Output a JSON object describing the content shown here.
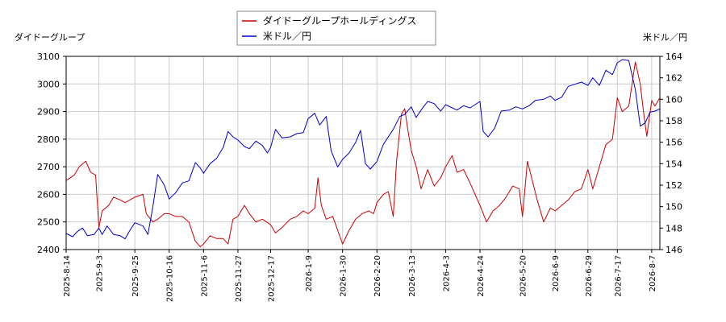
{
  "chart_data": {
    "type": "line",
    "y_left_label": "ダイドーグループ",
    "y_right_label": "米ドル／円",
    "y_left_lim": [
      2400,
      3100
    ],
    "y_left_ticks": [
      2400,
      2500,
      2600,
      2700,
      2800,
      2900,
      3000,
      3100
    ],
    "y_right_lim": [
      146,
      164
    ],
    "y_right_ticks": [
      146,
      148,
      150,
      152,
      154,
      156,
      158,
      160,
      162,
      164
    ],
    "x_lim": [
      "2025-08-14",
      "2026-08-12"
    ],
    "x_ticks": [
      "2025-8-14",
      "2025-9-3",
      "2025-9-25",
      "2025-10-16",
      "2025-11-6",
      "2025-11-27",
      "2025-12-17",
      "2026-1-9",
      "2026-1-30",
      "2026-2-20",
      "2026-3-13",
      "2026-4-3",
      "2026-4-24",
      "2026-5-20",
      "2026-6-9",
      "2026-6-29",
      "2026-7-17",
      "2026-8-7"
    ],
    "grid": true,
    "legend_position": "top-center",
    "series": [
      {
        "name": "ダイドーグループホールディングス",
        "color": "#cc0000",
        "axis": "left",
        "points": [
          [
            "2025-08-14",
            2650
          ],
          [
            "2025-08-19",
            2670
          ],
          [
            "2025-08-22",
            2700
          ],
          [
            "2025-08-26",
            2720
          ],
          [
            "2025-08-29",
            2680
          ],
          [
            "2025-09-01",
            2670
          ],
          [
            "2025-09-03",
            2480
          ],
          [
            "2025-09-05",
            2540
          ],
          [
            "2025-09-09",
            2560
          ],
          [
            "2025-09-12",
            2590
          ],
          [
            "2025-09-16",
            2580
          ],
          [
            "2025-09-19",
            2570
          ],
          [
            "2025-09-25",
            2590
          ],
          [
            "2025-09-30",
            2600
          ],
          [
            "2025-10-02",
            2530
          ],
          [
            "2025-10-06",
            2500
          ],
          [
            "2025-10-09",
            2510
          ],
          [
            "2025-10-13",
            2530
          ],
          [
            "2025-10-16",
            2530
          ],
          [
            "2025-10-20",
            2520
          ],
          [
            "2025-10-24",
            2520
          ],
          [
            "2025-10-28",
            2500
          ],
          [
            "2025-11-01",
            2430
          ],
          [
            "2025-11-04",
            2410
          ],
          [
            "2025-11-06",
            2420
          ],
          [
            "2025-11-10",
            2450
          ],
          [
            "2025-11-14",
            2440
          ],
          [
            "2025-11-18",
            2440
          ],
          [
            "2025-11-21",
            2420
          ],
          [
            "2025-11-24",
            2510
          ],
          [
            "2025-11-27",
            2520
          ],
          [
            "2025-12-01",
            2560
          ],
          [
            "2025-12-04",
            2530
          ],
          [
            "2025-12-08",
            2500
          ],
          [
            "2025-12-12",
            2510
          ],
          [
            "2025-12-17",
            2490
          ],
          [
            "2025-12-20",
            2460
          ],
          [
            "2025-12-24",
            2480
          ],
          [
            "2025-12-29",
            2510
          ],
          [
            "2026-01-02",
            2520
          ],
          [
            "2026-01-06",
            2540
          ],
          [
            "2026-01-09",
            2530
          ],
          [
            "2026-01-13",
            2550
          ],
          [
            "2026-01-15",
            2660
          ],
          [
            "2026-01-17",
            2560
          ],
          [
            "2026-01-20",
            2510
          ],
          [
            "2026-01-24",
            2520
          ],
          [
            "2026-01-27",
            2470
          ],
          [
            "2026-01-30",
            2420
          ],
          [
            "2026-02-03",
            2470
          ],
          [
            "2026-02-07",
            2510
          ],
          [
            "2026-02-11",
            2530
          ],
          [
            "2026-02-15",
            2540
          ],
          [
            "2026-02-18",
            2530
          ],
          [
            "2026-02-20",
            2570
          ],
          [
            "2026-02-24",
            2600
          ],
          [
            "2026-02-27",
            2610
          ],
          [
            "2026-03-02",
            2520
          ],
          [
            "2026-03-04",
            2720
          ],
          [
            "2026-03-07",
            2890
          ],
          [
            "2026-03-09",
            2910
          ],
          [
            "2026-03-11",
            2830
          ],
          [
            "2026-03-13",
            2760
          ],
          [
            "2026-03-16",
            2700
          ],
          [
            "2026-03-19",
            2620
          ],
          [
            "2026-03-23",
            2690
          ],
          [
            "2026-03-27",
            2630
          ],
          [
            "2026-03-31",
            2660
          ],
          [
            "2026-04-03",
            2700
          ],
          [
            "2026-04-07",
            2740
          ],
          [
            "2026-04-10",
            2680
          ],
          [
            "2026-04-14",
            2690
          ],
          [
            "2026-04-18",
            2640
          ],
          [
            "2026-04-24",
            2560
          ],
          [
            "2026-04-28",
            2500
          ],
          [
            "2026-05-02",
            2540
          ],
          [
            "2026-05-06",
            2560
          ],
          [
            "2026-05-10",
            2590
          ],
          [
            "2026-05-14",
            2630
          ],
          [
            "2026-05-18",
            2620
          ],
          [
            "2026-05-20",
            2520
          ],
          [
            "2026-05-23",
            2720
          ],
          [
            "2026-05-26",
            2650
          ],
          [
            "2026-05-29",
            2580
          ],
          [
            "2026-06-02",
            2500
          ],
          [
            "2026-06-06",
            2550
          ],
          [
            "2026-06-09",
            2540
          ],
          [
            "2026-06-13",
            2560
          ],
          [
            "2026-06-17",
            2580
          ],
          [
            "2026-06-21",
            2610
          ],
          [
            "2026-06-25",
            2620
          ],
          [
            "2026-06-29",
            2690
          ],
          [
            "2026-07-02",
            2620
          ],
          [
            "2026-07-06",
            2700
          ],
          [
            "2026-07-10",
            2780
          ],
          [
            "2026-07-14",
            2800
          ],
          [
            "2026-07-17",
            2950
          ],
          [
            "2026-07-20",
            2900
          ],
          [
            "2026-07-24",
            2920
          ],
          [
            "2026-07-28",
            3080
          ],
          [
            "2026-07-31",
            3000
          ],
          [
            "2026-08-02",
            2900
          ],
          [
            "2026-08-04",
            2810
          ],
          [
            "2026-08-07",
            2940
          ],
          [
            "2026-08-09",
            2920
          ],
          [
            "2026-08-12",
            2950
          ]
        ]
      },
      {
        "name": "米ドル／円",
        "color": "#0000cc",
        "axis": "right",
        "points": [
          [
            "2025-08-14",
            147.5
          ],
          [
            "2025-08-18",
            147.2
          ],
          [
            "2025-08-21",
            147.7
          ],
          [
            "2025-08-24",
            148.0
          ],
          [
            "2025-08-27",
            147.3
          ],
          [
            "2025-08-31",
            147.4
          ],
          [
            "2025-09-03",
            148.0
          ],
          [
            "2025-09-05",
            147.4
          ],
          [
            "2025-09-08",
            148.2
          ],
          [
            "2025-09-12",
            147.4
          ],
          [
            "2025-09-16",
            147.3
          ],
          [
            "2025-09-19",
            147.0
          ],
          [
            "2025-09-22",
            147.8
          ],
          [
            "2025-09-25",
            148.5
          ],
          [
            "2025-09-30",
            148.2
          ],
          [
            "2025-10-03",
            147.4
          ],
          [
            "2025-10-06",
            150.0
          ],
          [
            "2025-10-09",
            153.0
          ],
          [
            "2025-10-13",
            152.0
          ],
          [
            "2025-10-16",
            150.7
          ],
          [
            "2025-10-20",
            151.3
          ],
          [
            "2025-10-24",
            152.2
          ],
          [
            "2025-10-28",
            152.4
          ],
          [
            "2025-11-01",
            154.1
          ],
          [
            "2025-11-04",
            153.6
          ],
          [
            "2025-11-06",
            153.1
          ],
          [
            "2025-11-10",
            154.0
          ],
          [
            "2025-11-14",
            154.5
          ],
          [
            "2025-11-18",
            155.5
          ],
          [
            "2025-11-21",
            157.0
          ],
          [
            "2025-11-24",
            156.5
          ],
          [
            "2025-11-27",
            156.2
          ],
          [
            "2025-12-01",
            155.6
          ],
          [
            "2025-12-04",
            155.4
          ],
          [
            "2025-12-08",
            156.1
          ],
          [
            "2025-12-12",
            155.7
          ],
          [
            "2025-12-15",
            155.0
          ],
          [
            "2025-12-17",
            155.5
          ],
          [
            "2025-12-20",
            157.2
          ],
          [
            "2025-12-24",
            156.4
          ],
          [
            "2025-12-29",
            156.5
          ],
          [
            "2026-01-02",
            156.8
          ],
          [
            "2026-01-06",
            156.9
          ],
          [
            "2026-01-09",
            158.2
          ],
          [
            "2026-01-13",
            158.7
          ],
          [
            "2026-01-16",
            157.6
          ],
          [
            "2026-01-20",
            158.4
          ],
          [
            "2026-01-23",
            155.2
          ],
          [
            "2026-01-27",
            153.7
          ],
          [
            "2026-01-30",
            154.4
          ],
          [
            "2026-02-03",
            155.0
          ],
          [
            "2026-02-07",
            156.0
          ],
          [
            "2026-02-10",
            157.1
          ],
          [
            "2026-02-13",
            154.0
          ],
          [
            "2026-02-16",
            153.5
          ],
          [
            "2026-02-20",
            154.2
          ],
          [
            "2026-02-24",
            155.8
          ],
          [
            "2026-02-27",
            156.5
          ],
          [
            "2026-03-02",
            157.2
          ],
          [
            "2026-03-06",
            158.4
          ],
          [
            "2026-03-09",
            158.6
          ],
          [
            "2026-03-13",
            159.3
          ],
          [
            "2026-03-16",
            158.3
          ],
          [
            "2026-03-19",
            159.0
          ],
          [
            "2026-03-23",
            159.8
          ],
          [
            "2026-03-27",
            159.6
          ],
          [
            "2026-03-31",
            158.9
          ],
          [
            "2026-04-03",
            159.5
          ],
          [
            "2026-04-07",
            159.2
          ],
          [
            "2026-04-10",
            159.0
          ],
          [
            "2026-04-14",
            159.4
          ],
          [
            "2026-04-18",
            159.2
          ],
          [
            "2026-04-21",
            159.5
          ],
          [
            "2026-04-24",
            159.8
          ],
          [
            "2026-04-26",
            157.0
          ],
          [
            "2026-04-29",
            156.5
          ],
          [
            "2026-05-03",
            157.3
          ],
          [
            "2026-05-07",
            158.9
          ],
          [
            "2026-05-12",
            159.0
          ],
          [
            "2026-05-16",
            159.3
          ],
          [
            "2026-05-20",
            159.1
          ],
          [
            "2026-05-24",
            159.4
          ],
          [
            "2026-05-28",
            159.9
          ],
          [
            "2026-06-02",
            160.0
          ],
          [
            "2026-06-06",
            160.3
          ],
          [
            "2026-06-09",
            159.9
          ],
          [
            "2026-06-13",
            160.2
          ],
          [
            "2026-06-17",
            161.2
          ],
          [
            "2026-06-21",
            161.4
          ],
          [
            "2026-06-25",
            161.6
          ],
          [
            "2026-06-29",
            161.3
          ],
          [
            "2026-07-02",
            162.0
          ],
          [
            "2026-07-06",
            161.3
          ],
          [
            "2026-07-10",
            162.7
          ],
          [
            "2026-07-14",
            162.3
          ],
          [
            "2026-07-17",
            163.4
          ],
          [
            "2026-07-20",
            163.7
          ],
          [
            "2026-07-24",
            163.6
          ],
          [
            "2026-07-28",
            160.9
          ],
          [
            "2026-07-31",
            157.5
          ],
          [
            "2026-08-03",
            157.8
          ],
          [
            "2026-08-06",
            158.8
          ],
          [
            "2026-08-09",
            158.9
          ],
          [
            "2026-08-12",
            159.1
          ]
        ]
      }
    ]
  }
}
